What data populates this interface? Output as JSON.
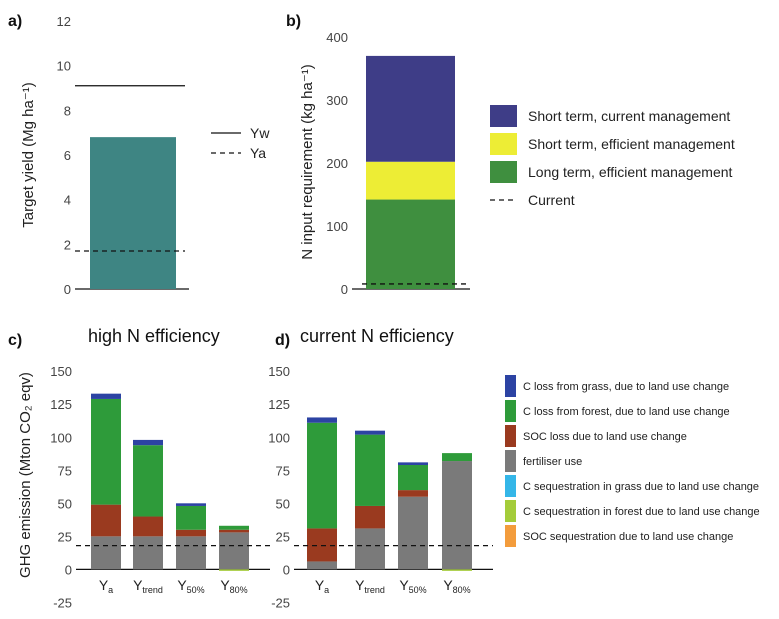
{
  "chart_data": [
    {
      "panel": "a)",
      "type": "bar",
      "ylabel": "Target yield (Mg ha⁻¹)",
      "ylim": [
        0,
        12
      ],
      "yticks": [
        0,
        2,
        4,
        6,
        8,
        10,
        12
      ],
      "values": [
        6.8
      ],
      "color": "#3e8583",
      "reference_lines": [
        {
          "name": "Yw",
          "value": 9.1,
          "style": "solid"
        },
        {
          "name": "Ya",
          "value": 1.7,
          "style": "dashed"
        }
      ]
    },
    {
      "panel": "b)",
      "type": "bar",
      "ylabel": "N input requirement (kg ha⁻¹)",
      "ylim": [
        0,
        400
      ],
      "yticks": [
        0,
        100,
        200,
        300,
        400
      ],
      "series": [
        {
          "name": "Long term, efficient management",
          "value": 142,
          "color": "#3f8f3f"
        },
        {
          "name": "Short term, efficient management",
          "value": 60,
          "color": "#eded35"
        },
        {
          "name": "Short term, current management",
          "value": 168,
          "color": "#3e3d87"
        }
      ],
      "reference_lines": [
        {
          "name": "Current",
          "value": 8,
          "style": "dashed"
        }
      ]
    },
    {
      "panel": "c)",
      "title": "high N efficiency",
      "type": "bar",
      "ylabel": "GHG emission (Mton CO₂ eqv)",
      "ylim": [
        -30,
        160
      ],
      "yticks": [
        -25,
        0,
        25,
        50,
        75,
        100,
        125,
        150
      ],
      "categories": [
        {
          "main": "Y",
          "sub": "a"
        },
        {
          "main": "Y",
          "sub": "trend"
        },
        {
          "main": "Y",
          "sub": "50%"
        },
        {
          "main": "Y",
          "sub": "80%"
        }
      ],
      "series": [
        {
          "key": "fert",
          "values": [
            25,
            25,
            25,
            28
          ]
        },
        {
          "key": "soc_loss",
          "values": [
            24,
            15,
            5,
            2
          ]
        },
        {
          "key": "c_forest",
          "values": [
            80,
            54,
            18,
            3
          ]
        },
        {
          "key": "c_grass",
          "values": [
            4,
            4,
            2,
            0
          ]
        },
        {
          "key": "c_seq_forest",
          "values": [
            0,
            0,
            0,
            -1
          ]
        }
      ],
      "reference_line": 18
    },
    {
      "panel": "d)",
      "title": "current N efficiency",
      "type": "bar",
      "ylim": [
        -30,
        160
      ],
      "yticks": [
        -25,
        0,
        25,
        50,
        75,
        100,
        125,
        150
      ],
      "categories": [
        {
          "main": "Y",
          "sub": "a"
        },
        {
          "main": "Y",
          "sub": "trend"
        },
        {
          "main": "Y",
          "sub": "50%"
        },
        {
          "main": "Y",
          "sub": "80%"
        }
      ],
      "series": [
        {
          "key": "fert",
          "values": [
            6,
            31,
            55,
            82
          ]
        },
        {
          "key": "soc_loss",
          "values": [
            25,
            17,
            5,
            0
          ]
        },
        {
          "key": "c_forest",
          "values": [
            80,
            54,
            19,
            6
          ]
        },
        {
          "key": "c_grass",
          "values": [
            4,
            3,
            2,
            0
          ]
        },
        {
          "key": "c_seq_forest",
          "values": [
            0,
            0,
            0,
            -1
          ]
        }
      ],
      "reference_line": 18
    }
  ],
  "legend_a": [
    {
      "name": "Yw",
      "style": "solid"
    },
    {
      "name": "Ya",
      "style": "dashed"
    }
  ],
  "legend_b": [
    {
      "name": "Short term, current management",
      "color": "#3e3d87"
    },
    {
      "name": "Short term, efficient management",
      "color": "#eded35"
    },
    {
      "name": "Long term, efficient management",
      "color": "#3f8f3f"
    },
    {
      "name": "Current",
      "style": "dashed"
    }
  ],
  "legend_cd": [
    {
      "key": "c_grass",
      "name": "C loss from grass, due to land use change",
      "color": "#2c43a3"
    },
    {
      "key": "c_forest",
      "name": "C loss from forest, due to land use change",
      "color": "#2e9b3a"
    },
    {
      "key": "soc_loss",
      "name": "SOC loss due to land use change",
      "color": "#9a3a1f"
    },
    {
      "key": "fert",
      "name": "fertiliser use",
      "color": "#7a7a7a"
    },
    {
      "key": "c_seq_grass",
      "name": "C sequestration in grass due to land use change",
      "color": "#34b6e8"
    },
    {
      "key": "c_seq_forest",
      "name": "C sequestration in forest due to land use change",
      "color": "#a4cc3a"
    },
    {
      "key": "soc_seq",
      "name": "SOC sequestration due to land use change",
      "color": "#f39c3c"
    }
  ]
}
